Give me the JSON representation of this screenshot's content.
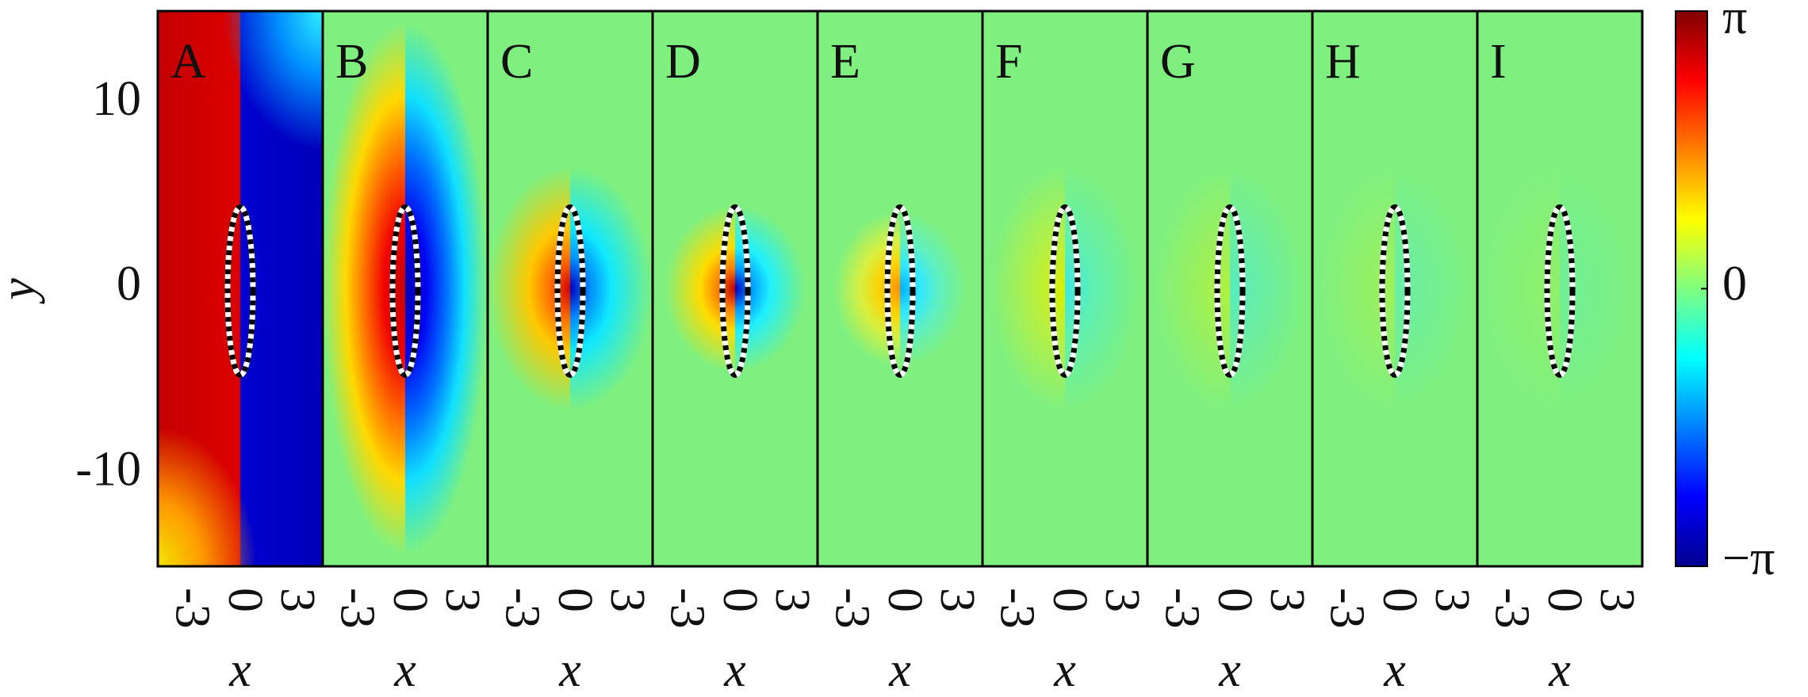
{
  "chart_data": {
    "type": "heatmap-panels",
    "panels": [
      "A",
      "B",
      "C",
      "D",
      "E",
      "F",
      "G",
      "H",
      "I"
    ],
    "x_label": "x",
    "y_label": "y",
    "xlim": [
      -4.7,
      4.7
    ],
    "ylim": [
      -15,
      15
    ],
    "xticks": [
      -3,
      0,
      3
    ],
    "yticks": [
      -10,
      0,
      10
    ],
    "colorbar": {
      "clim": [
        -3.1416,
        3.1416
      ],
      "ticks": [
        {
          "value": -3.1416,
          "label": "−π"
        },
        0,
        {
          "value": 3.1416,
          "label": "π"
        }
      ]
    }
  }
}
